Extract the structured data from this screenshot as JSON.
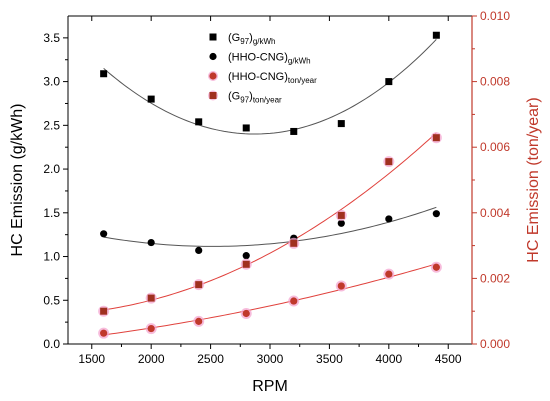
{
  "chart_data": {
    "type": "scatter",
    "xlabel": "RPM",
    "ylabel_left": "HC Emission (g/kWh)",
    "ylabel_right": "HC Emission (ton/year)",
    "xlim": [
      1300,
      4700
    ],
    "ylim_left": [
      0.0,
      3.75
    ],
    "ylim_right": [
      0.0,
      0.01
    ],
    "x_ticks": [
      1500,
      2000,
      2500,
      3000,
      3500,
      4000,
      4500
    ],
    "y_left_ticks": [
      0.0,
      0.5,
      1.0,
      1.5,
      2.0,
      2.5,
      3.0,
      3.5
    ],
    "y_right_ticks": [
      0.0,
      0.002,
      0.004,
      0.006,
      0.008,
      0.01
    ],
    "x_tick_labels": [
      "1500",
      "2000",
      "2500",
      "3000",
      "3500",
      "4000",
      "4500"
    ],
    "y_left_tick_labels": [
      "0.0",
      "0.5",
      "1.0",
      "1.5",
      "2.0",
      "2.5",
      "3.0",
      "3.5"
    ],
    "y_right_tick_labels": [
      "0.000",
      "0.002",
      "0.004",
      "0.006",
      "0.008",
      "0.010"
    ],
    "legend_position": "top-center",
    "colors": {
      "black": "#000000",
      "red_axis": "#c0392b",
      "red_fit": "#e0413c",
      "dark_red": "#a0301f",
      "pink_halo": "#f4a6d0"
    },
    "series": [
      {
        "name": "(G97)g/kWh",
        "label_main": "(G",
        "label_sub1": "97",
        "label_close": ")",
        "label_sub2": "g/kWh",
        "axis": "left",
        "marker": "square",
        "color": "#000000",
        "x": [
          1600,
          2000,
          2400,
          2800,
          3200,
          3600,
          4000,
          4400
        ],
        "y": [
          3.09,
          2.8,
          2.54,
          2.47,
          2.43,
          2.52,
          3.0,
          3.53
        ],
        "fit_color": "#555555"
      },
      {
        "name": "(HHO-CNG)g/kWh",
        "label_main": "(HHO-CNG)",
        "label_sub1": "",
        "label_close": "",
        "label_sub2": "g/kWh",
        "axis": "left",
        "marker": "circle",
        "color": "#000000",
        "x": [
          1600,
          2000,
          2400,
          2800,
          3200,
          3600,
          4000,
          4400
        ],
        "y": [
          1.26,
          1.16,
          1.07,
          1.01,
          1.21,
          1.38,
          1.43,
          1.49
        ],
        "fit_color": "#555555"
      },
      {
        "name": "(HHO-CNG)ton/year",
        "label_main": "(HHO-CNG)",
        "label_sub1": "",
        "label_close": "",
        "label_sub2": "ton/year",
        "axis": "right",
        "marker": "circle",
        "color": "#c0392b",
        "x": [
          1600,
          2000,
          2400,
          2800,
          3200,
          3600,
          4000,
          4400
        ],
        "y": [
          0.00033,
          0.00047,
          0.00069,
          0.00093,
          0.00131,
          0.00177,
          0.00213,
          0.00234
        ],
        "fit_color": "#e0413c"
      },
      {
        "name": "(G97)ton/year",
        "label_main": "(G",
        "label_sub1": "97",
        "label_close": ")",
        "label_sub2": "ton/year",
        "axis": "right",
        "marker": "square",
        "color": "#a0301f",
        "x": [
          1600,
          2000,
          2400,
          2800,
          3200,
          3600,
          4000,
          4400
        ],
        "y": [
          0.001,
          0.0014,
          0.00181,
          0.00243,
          0.00307,
          0.00392,
          0.00556,
          0.00629
        ],
        "fit_color": "#e0413c"
      }
    ]
  }
}
